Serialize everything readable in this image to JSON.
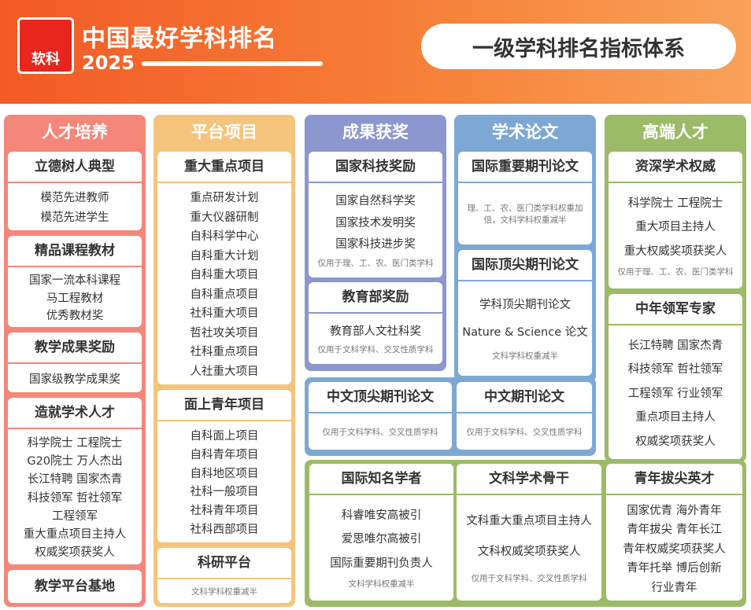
{
  "header": {
    "logo": "软科",
    "title": "中国最好学科排名",
    "year": "2025",
    "badge": "一级学科排名指标体系"
  },
  "sections": [
    {
      "title": "人才培养",
      "boxes": [
        {
          "title": "立德树人典型",
          "items": [
            "模范先进教师",
            "模范先进学生"
          ]
        },
        {
          "title": "精品课程教材",
          "items": [
            "国家一流本科课程",
            "马工程教材",
            "优秀教材奖"
          ]
        },
        {
          "title": "教学成果奖励",
          "items": [
            "国家级教学成果奖"
          ]
        },
        {
          "title": "造就学术人才",
          "items": [
            "科学院士 工程院士",
            "G20院士 万人杰出",
            "长江特聘 国家杰青",
            "科技领军 哲社领军",
            "工程领军",
            "重大重点项目主持人",
            "权威奖项获奖人"
          ]
        },
        {
          "title": "教学平台基地",
          "items": []
        }
      ]
    },
    {
      "title": "平台项目",
      "boxes": [
        {
          "title": "重大重点项目",
          "items": [
            "重点研发计划",
            "重大仪器研制",
            "自科科学中心",
            "自科重大计划",
            "自科重大项目",
            "自科重点项目",
            "社科重大项目",
            "哲社攻关项目",
            "社科重点项目",
            "人社重大项目"
          ]
        },
        {
          "title": "面上青年项目",
          "items": [
            "自科面上项目",
            "自科青年项目",
            "自科地区项目",
            "社科一般项目",
            "社科青年项目",
            "社科西部项目"
          ]
        },
        {
          "title": "科研平台",
          "items": [],
          "note": "文科学科权重减半"
        }
      ]
    },
    {
      "title": "成果获奖",
      "boxes": [
        {
          "title": "国家科技奖励",
          "items": [
            "国家自然科学奖",
            "国家技术发明奖",
            "国家科技进步奖"
          ],
          "note": "仅用于理、工、农、医门类学科"
        },
        {
          "title": "教育部奖励",
          "items": [
            "教育部人文社科奖"
          ],
          "note": "仅用于文科学科、交叉性质学科"
        }
      ]
    },
    {
      "title": "学术论文",
      "boxes": [
        {
          "title": "国际重要期刊论文",
          "items": [],
          "note": "理、工、农、医门类学科权重加倍，文科学科权重减半"
        },
        {
          "title": "国际顶尖期刊论文",
          "items": [
            "学科顶尖期刊论文",
            "Nature & Science 论文"
          ],
          "note": "文科学科权重减半"
        },
        {
          "title": "中文顶尖期刊论文",
          "items": [],
          "note": "仅用于文科学科、交叉性质学科"
        },
        {
          "title": "中文期刊论文",
          "items": [],
          "note": "仅用于文科学科、交叉性质学科"
        }
      ]
    },
    {
      "title": "高端人才",
      "boxes": [
        {
          "title": "资深学术权威",
          "items": [
            "科学院士 工程院士",
            "重大项目主持人",
            "重大权威奖项获奖人"
          ],
          "note": "仅用于理、工、农、医门类学科"
        },
        {
          "title": "中年领军专家",
          "items": [
            "长江特聘 国家杰青",
            "科技领军 哲社领军",
            "工程领军 行业领军",
            "重点项目主持人",
            "权威奖项获奖人"
          ]
        },
        {
          "title": "国际知名学者",
          "items": [
            "科睿唯安高被引",
            "爱思唯尔高被引",
            "国际重要期刊负责人"
          ],
          "note": "文科学科权重减半"
        },
        {
          "title": "文科学术骨干",
          "items": [
            "文科重大重点项目主持人",
            "文科权威奖项获奖人"
          ],
          "note": "仅用于文科学科、交叉性质学科"
        },
        {
          "title": "青年拔尖英才",
          "items": [
            "国家优青 海外青年",
            "青年拔尖 青年长江",
            "青年权威奖项获奖人",
            "青年托举 博后创新",
            "行业青年"
          ]
        }
      ]
    }
  ]
}
